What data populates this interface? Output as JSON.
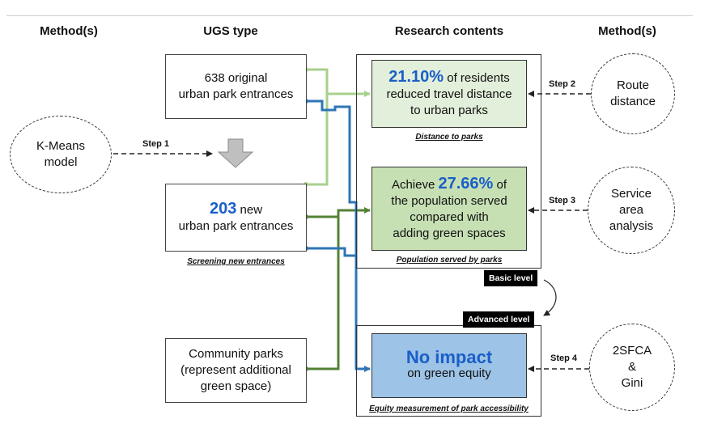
{
  "headers": {
    "methods_left": "Method(s)",
    "ugs_type": "UGS type",
    "research_contents": "Research contents",
    "methods_right": "Method(s)"
  },
  "ugs": {
    "original_entrances": {
      "line1": "638 original",
      "line2": "urban park entrances"
    },
    "new_entrances": {
      "count": "203",
      "line1_suffix": " new",
      "line2": "urban park entrances"
    },
    "screening_caption": "Screening new entrances",
    "community_parks": {
      "line1": "Community parks",
      "line2": "(represent additional",
      "line3": "green space)"
    }
  },
  "research": {
    "distance": {
      "value": "21.10%",
      "line1_suffix": " of residents",
      "line2": "reduced travel distance",
      "line3": "to urban parks",
      "caption": "Distance to parks"
    },
    "population": {
      "prefix": "Achieve ",
      "value": "27.66%",
      "suffix": " of",
      "line2": "the population served",
      "line3": "compared with",
      "line4": "adding green spaces",
      "caption": "Population served by parks"
    },
    "equity": {
      "headline": "No impact",
      "line2": "on green equity",
      "caption": "Equity measurement of park accessibility"
    },
    "basic_level": "Basic level",
    "advanced_level": "Advanced level"
  },
  "methods": {
    "kmeans": {
      "line1": "K-Means",
      "line2": "model",
      "step": "Step 1"
    },
    "route": {
      "line1": "Route",
      "line2": "distance",
      "step": "Step 2"
    },
    "service": {
      "line1": "Service",
      "line2": "area",
      "line3": "analysis",
      "step": "Step 3"
    },
    "sfca": {
      "line1": "2SFCA",
      "line2": "&",
      "line3": "Gini",
      "step": "Step 4"
    }
  },
  "colors": {
    "light_green_line": "#a8d08d",
    "dark_green_line": "#548235",
    "blue_line": "#2e75b6",
    "light_green_fill": "#e2efda",
    "mid_green_fill": "#c6e0b4",
    "blue_fill": "#9dc3e6",
    "headline_blue": "#1a5fc8"
  }
}
